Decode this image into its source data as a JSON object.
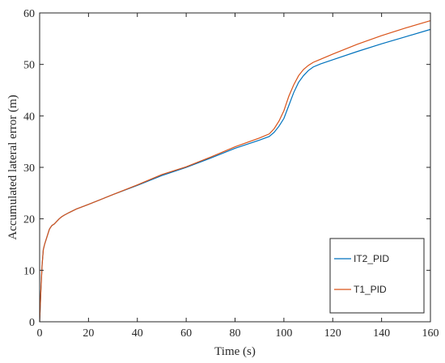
{
  "chart_data": {
    "type": "line",
    "title": "",
    "xlabel": "Time (s)",
    "ylabel": "Accumulated lateral error (m)",
    "xlim": [
      0,
      160
    ],
    "ylim": [
      0,
      60
    ],
    "xticks": [
      0,
      20,
      40,
      60,
      80,
      100,
      120,
      140,
      160
    ],
    "yticks": [
      0,
      10,
      20,
      30,
      40,
      50,
      60
    ],
    "grid": false,
    "legend_position": "bottom-right",
    "series": [
      {
        "name": "IT2_PID",
        "color": "#0072BD",
        "x": [
          0,
          0.5,
          1,
          1.5,
          2,
          3,
          4,
          5,
          6,
          7,
          8,
          9,
          10,
          12,
          15,
          20,
          30,
          40,
          50,
          60,
          70,
          80,
          90,
          94,
          96,
          98,
          100,
          102,
          104,
          106,
          108,
          110,
          112,
          115,
          120,
          130,
          140,
          150,
          160
        ],
        "y": [
          0,
          6,
          11,
          14,
          15,
          16.5,
          18,
          18.7,
          19,
          19.5,
          20,
          20.4,
          20.7,
          21.2,
          21.9,
          22.8,
          24.7,
          26.5,
          28.4,
          30,
          31.8,
          33.7,
          35.3,
          36,
          36.8,
          38,
          39.5,
          42,
          44.5,
          46.5,
          47.8,
          48.8,
          49.5,
          50.1,
          50.9,
          52.5,
          54,
          55.4,
          56.8
        ]
      },
      {
        "name": "T1_PID",
        "color": "#D95319",
        "x": [
          0,
          0.5,
          1,
          1.5,
          2,
          3,
          4,
          5,
          6,
          7,
          8,
          9,
          10,
          12,
          15,
          20,
          30,
          40,
          50,
          60,
          70,
          80,
          90,
          94,
          96,
          98,
          100,
          102,
          104,
          106,
          108,
          110,
          112,
          115,
          120,
          130,
          140,
          150,
          160
        ],
        "y": [
          0,
          6,
          11,
          14,
          15,
          16.5,
          18,
          18.7,
          19,
          19.5,
          20,
          20.4,
          20.7,
          21.2,
          21.9,
          22.8,
          24.7,
          26.6,
          28.6,
          30.1,
          32,
          34,
          35.7,
          36.5,
          37.5,
          39,
          41,
          43.8,
          46,
          47.8,
          49,
          49.8,
          50.4,
          51,
          52,
          53.9,
          55.6,
          57.1,
          58.5
        ]
      }
    ]
  }
}
